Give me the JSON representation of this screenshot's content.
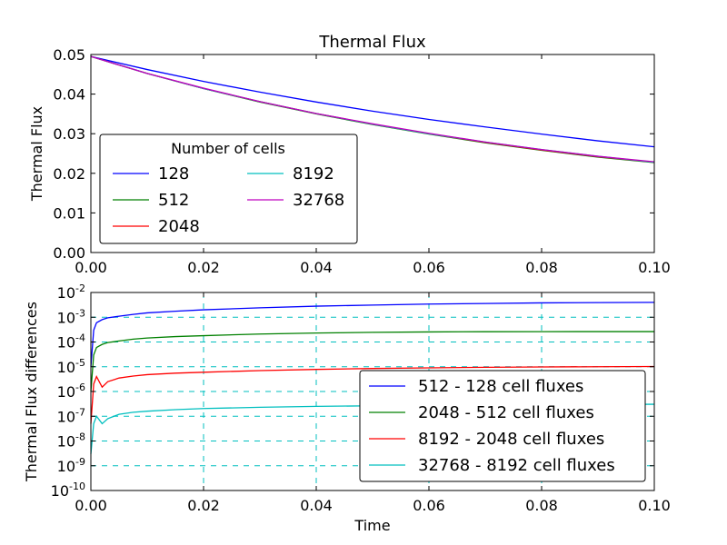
{
  "chart_data": [
    {
      "type": "line",
      "title": "Thermal Flux",
      "xlabel": "",
      "ylabel": "Thermal Flux",
      "xlim": [
        0.0,
        0.1
      ],
      "ylim": [
        0.0,
        0.05
      ],
      "grid": false,
      "xticks": [
        0.0,
        0.02,
        0.04,
        0.06,
        0.08,
        0.1
      ],
      "xtick_labels": [
        "0.00",
        "0.02",
        "0.04",
        "0.06",
        "0.08",
        "0.10"
      ],
      "yticks": [
        0.0,
        0.01,
        0.02,
        0.03,
        0.04,
        0.05
      ],
      "ytick_labels": [
        "0.00",
        "0.01",
        "0.02",
        "0.03",
        "0.04",
        "0.05"
      ],
      "legend": {
        "title": "Number of cells",
        "placement": "lower-left",
        "columns": 2
      },
      "x": [
        0.0,
        0.01,
        0.02,
        0.03,
        0.04,
        0.05,
        0.06,
        0.07,
        0.08,
        0.09,
        0.1
      ],
      "series": [
        {
          "name": "128",
          "color": "#0000ff",
          "values": [
            0.0495,
            0.0462,
            0.0432,
            0.0405,
            0.038,
            0.0357,
            0.0336,
            0.0317,
            0.0299,
            0.0282,
            0.0267
          ]
        },
        {
          "name": "512",
          "color": "#008000",
          "values": [
            0.0495,
            0.0452,
            0.0414,
            0.038,
            0.035,
            0.0323,
            0.0299,
            0.0277,
            0.0258,
            0.0241,
            0.0227
          ]
        },
        {
          "name": "2048",
          "color": "#ff0000",
          "values": [
            0.0495,
            0.0452,
            0.0414,
            0.0381,
            0.0351,
            0.0324,
            0.03,
            0.0278,
            0.0259,
            0.0242,
            0.0228
          ]
        },
        {
          "name": "8192",
          "color": "#00bfbf",
          "values": [
            0.0495,
            0.0452,
            0.0414,
            0.0381,
            0.0351,
            0.0324,
            0.03,
            0.0279,
            0.026,
            0.0243,
            0.0228
          ]
        },
        {
          "name": "32768",
          "color": "#bf00bf",
          "values": [
            0.0495,
            0.0452,
            0.0415,
            0.0381,
            0.0351,
            0.0325,
            0.0301,
            0.0279,
            0.026,
            0.0243,
            0.0229
          ]
        }
      ]
    },
    {
      "type": "line",
      "title": "",
      "xlabel": "Time",
      "ylabel": "Thermal Flux differences",
      "xlim": [
        0.0,
        0.1
      ],
      "ylim": [
        1e-10,
        0.01
      ],
      "yscale": "log",
      "grid": true,
      "grid_color": "#00bfbf",
      "xticks": [
        0.0,
        0.02,
        0.04,
        0.06,
        0.08,
        0.1
      ],
      "xtick_labels": [
        "0.00",
        "0.02",
        "0.04",
        "0.06",
        "0.08",
        "0.10"
      ],
      "ytick_exponents": [
        -10,
        -9,
        -8,
        -7,
        -6,
        -5,
        -4,
        -3,
        -2
      ],
      "ytick_base": "10",
      "legend": {
        "placement": "lower-right",
        "columns": 1
      },
      "x": [
        0.0,
        0.0005,
        0.001,
        0.002,
        0.003,
        0.005,
        0.0075,
        0.01,
        0.015,
        0.02,
        0.03,
        0.04,
        0.05,
        0.06,
        0.07,
        0.08,
        0.09,
        0.1
      ],
      "series": [
        {
          "name": "512 - 128 cell fluxes",
          "color": "#0000ff",
          "values": [
            1e-05,
            0.0003,
            0.0006,
            0.0008,
            0.00095,
            0.0011,
            0.0013,
            0.0015,
            0.00175,
            0.002,
            0.0024,
            0.0028,
            0.0031,
            0.0034,
            0.0036,
            0.0038,
            0.0039,
            0.004
          ]
        },
        {
          "name": "2048 - 512 cell fluxes",
          "color": "#008000",
          "values": [
            1e-06,
            3e-05,
            6e-05,
            8e-05,
            9.5e-05,
            0.00011,
            0.00013,
            0.000145,
            0.000165,
            0.00018,
            0.00021,
            0.00023,
            0.000245,
            0.000255,
            0.00026,
            0.000262,
            0.000263,
            0.000263
          ]
        },
        {
          "name": "8192 - 2048 cell fluxes",
          "color": "#ff0000",
          "values": [
            5e-08,
            2e-06,
            4e-06,
            1.5e-06,
            2.5e-06,
            3.5e-06,
            4.2e-06,
            4.8e-06,
            5.5e-06,
            6e-06,
            7e-06,
            7.8e-06,
            8.5e-06,
            9e-06,
            9.5e-06,
            9.8e-06,
            1e-05,
            1.02e-05
          ]
        },
        {
          "name": "32768 - 8192 cell fluxes",
          "color": "#00bfbf",
          "values": [
            3e-09,
            5e-08,
            1e-07,
            5e-08,
            8e-08,
            1.2e-07,
            1.45e-07,
            1.6e-07,
            1.85e-07,
            2.05e-07,
            2.3e-07,
            2.5e-07,
            2.65e-07,
            2.75e-07,
            2.85e-07,
            2.95e-07,
            3e-07,
            3.05e-07
          ]
        }
      ]
    }
  ]
}
